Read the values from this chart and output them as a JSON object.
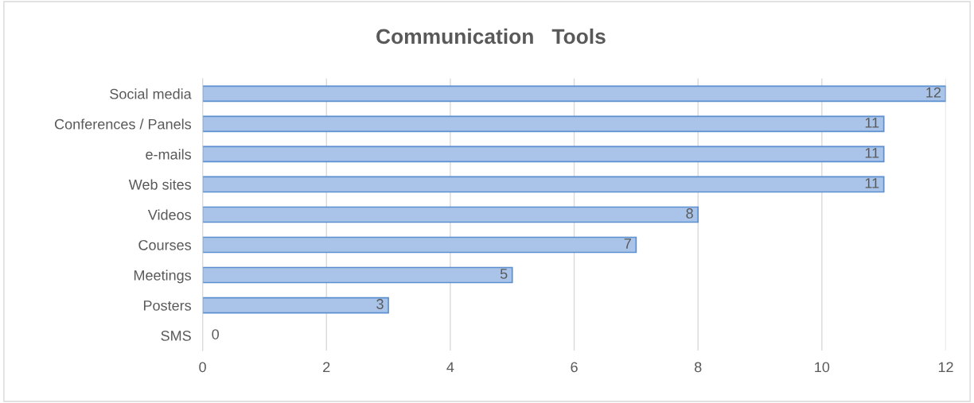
{
  "chart_data": {
    "type": "bar",
    "orientation": "horizontal",
    "title": "Communication   Tools",
    "categories": [
      "Social media",
      "Conferences / Panels",
      "e-mails",
      "Web sites",
      "Videos",
      "Courses",
      "Meetings",
      "Posters",
      "SMS"
    ],
    "values": [
      12,
      11,
      11,
      11,
      8,
      7,
      5,
      3,
      0
    ],
    "color": "#a9c4e8",
    "xlim": [
      0,
      12
    ],
    "xticks": [
      0,
      2,
      4,
      6,
      8,
      10,
      12
    ],
    "grid": "x",
    "data_labels": true
  }
}
